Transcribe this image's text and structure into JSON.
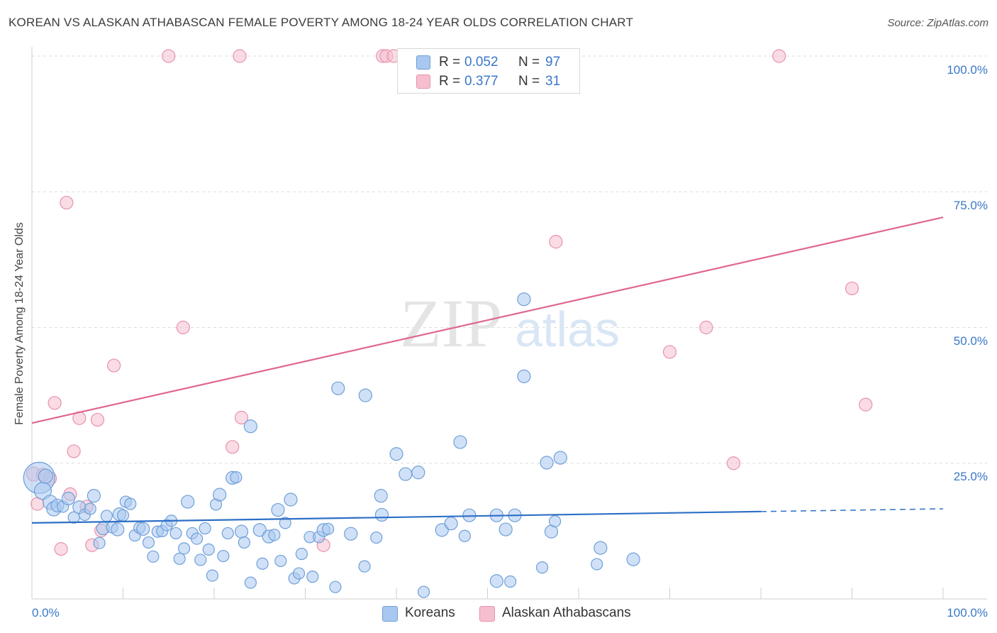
{
  "title": "KOREAN VS ALASKAN ATHABASCAN FEMALE POVERTY AMONG 18-24 YEAR OLDS CORRELATION CHART",
  "source": "Source: ZipAtlas.com",
  "watermark": {
    "zip": "ZIP",
    "atlas": "atlas"
  },
  "legend": {
    "rows": [
      {
        "r_label": "R =",
        "r_value": "0.052",
        "n_label": "N =",
        "n_value": "97"
      },
      {
        "r_label": "R =",
        "r_value": "0.377",
        "n_label": "N =",
        "n_value": "31"
      }
    ]
  },
  "colors": {
    "korean_fill": "#a9c8f0",
    "korean_stroke": "#6f9fd8",
    "korean_line": "#2d6fc6",
    "alaskan_fill": "#f6bfcf",
    "alaskan_stroke": "#e891ac",
    "alaskan_line": "#e06690",
    "tick_text": "#3a78c7",
    "grid": "#dddddd"
  },
  "chart_data": {
    "type": "scatter",
    "title": "KOREAN VS ALASKAN ATHABASCAN FEMALE POVERTY AMONG 18-24 YEAR OLDS CORRELATION CHART",
    "xlabel": "",
    "ylabel": "Female Poverty Among 18-24 Year Olds",
    "xlim": [
      0,
      100
    ],
    "ylim": [
      0,
      100
    ],
    "x_tick_labels": [
      "0.0%",
      "100.0%"
    ],
    "y_ticks": [
      25,
      50,
      75,
      100
    ],
    "y_tick_labels": [
      "25.0%",
      "50.0%",
      "75.0%",
      "100.0%"
    ],
    "grid": true,
    "legend_position": "top-center",
    "series": [
      {
        "name": "Koreans",
        "color": "#a9c8f0",
        "r": 0.052,
        "n": 97,
        "trend": {
          "x": [
            0,
            80
          ],
          "y": [
            14.0,
            16.1
          ],
          "dashed_to_x": 100,
          "dashed_to_y": 16.6
        },
        "points": [
          [
            0.8,
            22.3,
            22
          ],
          [
            1.2,
            19.9,
            12
          ],
          [
            1.5,
            22.6,
            10
          ],
          [
            2.0,
            17.8,
            10
          ],
          [
            2.4,
            16.6,
            10
          ],
          [
            2.8,
            17.2,
            9
          ],
          [
            3.4,
            17.0,
            8
          ],
          [
            4.0,
            18.5,
            9
          ],
          [
            4.6,
            15.0,
            8
          ],
          [
            5.2,
            16.9,
            9
          ],
          [
            5.8,
            15.5,
            8
          ],
          [
            6.4,
            16.6,
            8
          ],
          [
            6.8,
            19.0,
            9
          ],
          [
            7.4,
            10.3,
            8
          ],
          [
            7.8,
            13.0,
            9
          ],
          [
            8.2,
            15.3,
            8
          ],
          [
            8.8,
            13.2,
            8
          ],
          [
            9.4,
            12.8,
            9
          ],
          [
            9.6,
            15.6,
            9
          ],
          [
            10.0,
            15.4,
            8
          ],
          [
            10.3,
            17.9,
            8
          ],
          [
            10.8,
            17.5,
            8
          ],
          [
            11.3,
            11.7,
            8
          ],
          [
            11.8,
            13.1,
            8
          ],
          [
            12.2,
            12.9,
            9
          ],
          [
            12.8,
            10.4,
            8
          ],
          [
            13.3,
            7.8,
            8
          ],
          [
            13.8,
            12.4,
            8
          ],
          [
            14.3,
            12.5,
            8
          ],
          [
            14.8,
            13.6,
            8
          ],
          [
            15.3,
            14.4,
            8
          ],
          [
            15.8,
            12.1,
            8
          ],
          [
            16.2,
            7.4,
            8
          ],
          [
            16.7,
            9.3,
            8
          ],
          [
            17.1,
            17.9,
            9
          ],
          [
            17.6,
            12.1,
            8
          ],
          [
            18.1,
            11.1,
            8
          ],
          [
            18.5,
            7.2,
            8
          ],
          [
            19.0,
            13.0,
            8
          ],
          [
            19.4,
            9.1,
            8
          ],
          [
            19.8,
            4.3,
            8
          ],
          [
            20.2,
            17.4,
            8
          ],
          [
            20.6,
            19.2,
            9
          ],
          [
            21.0,
            7.9,
            8
          ],
          [
            21.5,
            12.1,
            8
          ],
          [
            22.0,
            22.3,
            9
          ],
          [
            22.4,
            22.4,
            8
          ],
          [
            23.0,
            12.4,
            9
          ],
          [
            23.3,
            10.4,
            8
          ],
          [
            24.0,
            3.0,
            8
          ],
          [
            24.0,
            31.8,
            9
          ],
          [
            25.0,
            12.7,
            9
          ],
          [
            25.3,
            6.5,
            8
          ],
          [
            26.0,
            11.5,
            9
          ],
          [
            26.6,
            11.8,
            8
          ],
          [
            27.0,
            16.4,
            9
          ],
          [
            27.3,
            7.0,
            8
          ],
          [
            27.8,
            14.0,
            8
          ],
          [
            28.4,
            18.3,
            9
          ],
          [
            28.8,
            3.8,
            8
          ],
          [
            29.3,
            4.7,
            8
          ],
          [
            29.6,
            8.3,
            8
          ],
          [
            30.5,
            11.4,
            8
          ],
          [
            30.8,
            4.1,
            8
          ],
          [
            31.5,
            11.4,
            8
          ],
          [
            32.0,
            12.7,
            9
          ],
          [
            32.5,
            12.9,
            8
          ],
          [
            33.3,
            2.2,
            8
          ],
          [
            33.6,
            38.8,
            9
          ],
          [
            35.0,
            12.0,
            9
          ],
          [
            36.6,
            37.5,
            9
          ],
          [
            36.5,
            6.0,
            8
          ],
          [
            37.8,
            11.3,
            8
          ],
          [
            38.3,
            19.0,
            9
          ],
          [
            38.4,
            15.5,
            9
          ],
          [
            40.0,
            26.7,
            9
          ],
          [
            41.0,
            23.0,
            9
          ],
          [
            42.4,
            23.3,
            9
          ],
          [
            43.0,
            1.3,
            8
          ],
          [
            45.0,
            12.7,
            9
          ],
          [
            46.0,
            13.9,
            9
          ],
          [
            47.0,
            28.9,
            9
          ],
          [
            47.5,
            11.6,
            8
          ],
          [
            48.0,
            15.4,
            9
          ],
          [
            51.0,
            15.4,
            9
          ],
          [
            51.0,
            3.3,
            9
          ],
          [
            52.0,
            12.8,
            9
          ],
          [
            52.5,
            3.2,
            8
          ],
          [
            53.0,
            15.4,
            9
          ],
          [
            54.0,
            41.0,
            9
          ],
          [
            54.0,
            55.2,
            9
          ],
          [
            56.0,
            5.8,
            8
          ],
          [
            56.5,
            25.1,
            9
          ],
          [
            57.0,
            12.4,
            9
          ],
          [
            57.4,
            14.3,
            8
          ],
          [
            58.0,
            26.0,
            9
          ],
          [
            62.0,
            6.4,
            8
          ],
          [
            62.4,
            9.4,
            9
          ],
          [
            66.0,
            7.3,
            9
          ]
        ]
      },
      {
        "name": "Alaskan Athabascans",
        "color": "#f6bfcf",
        "r": 0.377,
        "n": 31,
        "trend": {
          "x": [
            0,
            100
          ],
          "y": [
            32.4,
            70.3
          ]
        },
        "points": [
          [
            0.2,
            23.0,
            10
          ],
          [
            0.6,
            17.5,
            9
          ],
          [
            1.2,
            22.9,
            9
          ],
          [
            2.0,
            22.2,
            9
          ],
          [
            2.5,
            36.1,
            9
          ],
          [
            3.2,
            9.2,
            9
          ],
          [
            3.8,
            73.0,
            9
          ],
          [
            4.2,
            19.3,
            9
          ],
          [
            4.6,
            27.2,
            9
          ],
          [
            5.2,
            33.3,
            9
          ],
          [
            6.0,
            17.0,
            9
          ],
          [
            6.6,
            9.9,
            9
          ],
          [
            7.2,
            33.0,
            9
          ],
          [
            7.6,
            12.6,
            9
          ],
          [
            9.0,
            43.0,
            9
          ],
          [
            15.0,
            100.0,
            9
          ],
          [
            16.6,
            50.0,
            9
          ],
          [
            22.0,
            28.0,
            9
          ],
          [
            22.8,
            100.0,
            9
          ],
          [
            23.0,
            33.4,
            9
          ],
          [
            32.0,
            9.9,
            9
          ],
          [
            38.5,
            100.0,
            9
          ],
          [
            38.9,
            100.0,
            9
          ],
          [
            39.7,
            100.0,
            9
          ],
          [
            57.5,
            65.8,
            9
          ],
          [
            70.0,
            45.5,
            9
          ],
          [
            74.0,
            50.0,
            9
          ],
          [
            77.0,
            25.0,
            9
          ],
          [
            82.0,
            100.0,
            9
          ],
          [
            90.0,
            57.2,
            9
          ],
          [
            91.5,
            35.8,
            9
          ]
        ]
      }
    ]
  },
  "bottom_legend": {
    "koreans": "Koreans",
    "alaskan": "Alaskan Athabascans"
  }
}
